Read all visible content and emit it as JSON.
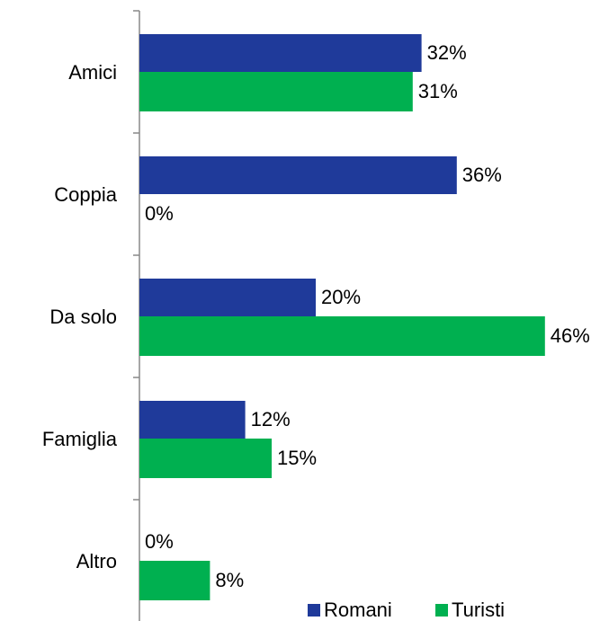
{
  "chart_data": {
    "type": "bar",
    "orientation": "horizontal",
    "categories": [
      "Amici",
      "Coppia",
      "Da solo",
      "Famiglia",
      "Altro"
    ],
    "series": [
      {
        "name": "Romani",
        "color": "#1f3a9a",
        "values": [
          32,
          36,
          20,
          12,
          0
        ],
        "value_labels": [
          "32%",
          "36%",
          "20%",
          "12%",
          "0%"
        ]
      },
      {
        "name": "Turisti",
        "color": "#00b050",
        "values": [
          31,
          0,
          46,
          15,
          8
        ],
        "value_labels": [
          "31%",
          "0%",
          "46%",
          "15%",
          "8%"
        ]
      }
    ],
    "legend": "bottom-right"
  }
}
